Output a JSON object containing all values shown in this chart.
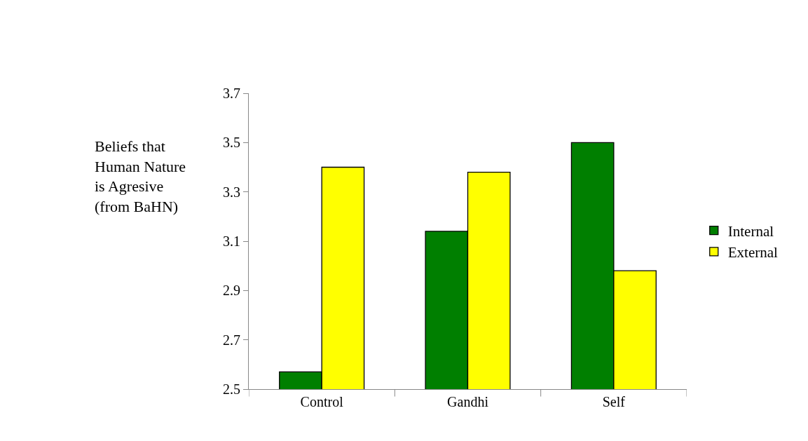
{
  "chart_data": {
    "type": "bar",
    "ylabel": "Beliefs that Human Nature is Agresive (from BaHN)",
    "categories": [
      "Control",
      "Gandhi",
      "Self"
    ],
    "series": [
      {
        "name": "Internal",
        "color": "#007f00",
        "values": [
          2.57,
          3.14,
          3.5
        ]
      },
      {
        "name": "External",
        "color": "#ffff00",
        "values": [
          3.4,
          3.38,
          2.98
        ]
      }
    ],
    "ylim": [
      2.5,
      3.7
    ],
    "yticks": [
      2.5,
      2.7,
      2.9,
      3.1,
      3.3,
      3.5,
      3.7
    ],
    "legend": "right"
  }
}
